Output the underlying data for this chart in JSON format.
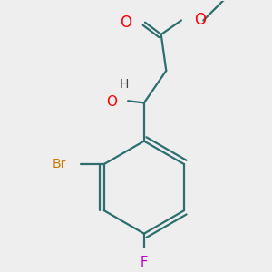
{
  "bg_color": "#eeeeee",
  "bond_color": "#2d6e6e",
  "O_color": "#ff0000",
  "Br_color": "#cc7700",
  "F_color": "#bb00cc",
  "H_color": "#444444",
  "line_width": 1.6,
  "fig_size": [
    3.0,
    3.0
  ],
  "dpi": 100,
  "xlim": [
    30,
    270
  ],
  "ylim": [
    20,
    280
  ]
}
